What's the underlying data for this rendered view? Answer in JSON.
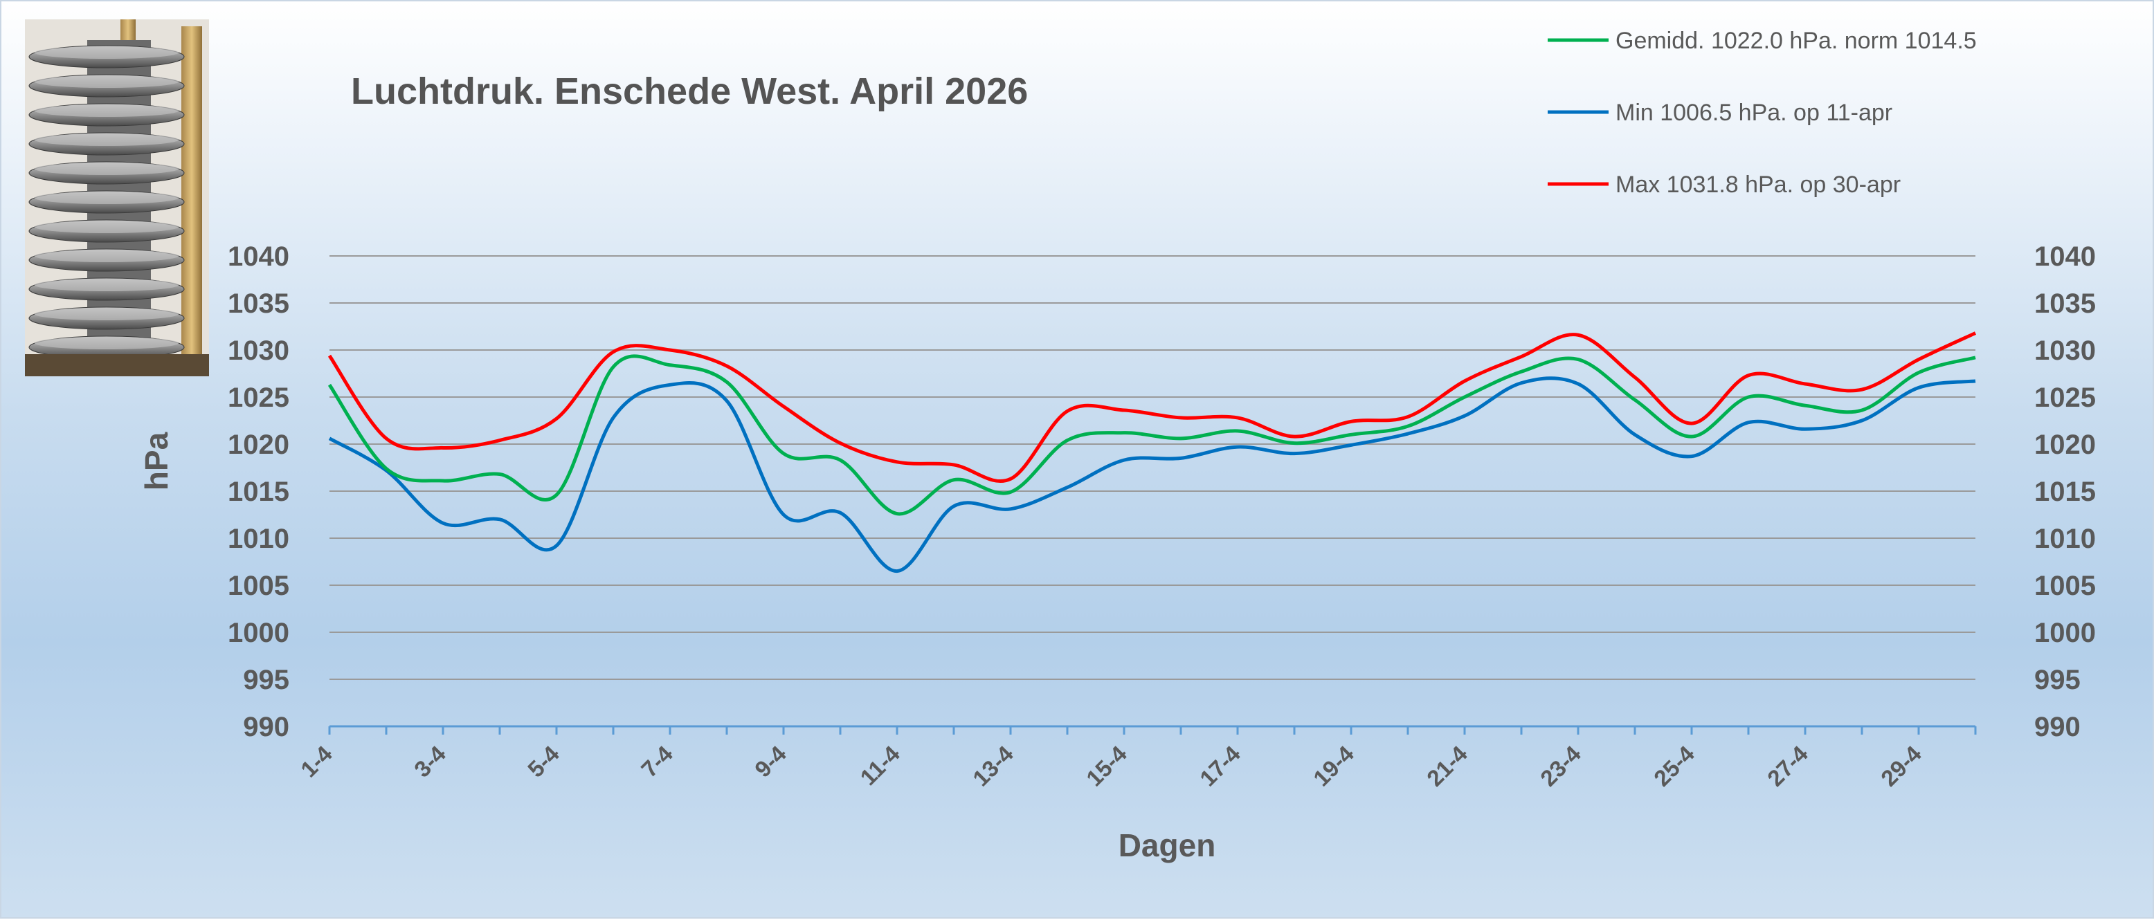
{
  "chart_data": {
    "type": "line",
    "title": "Luchtdruk. Enschede West. April 2026",
    "xlabel": "Dagen",
    "ylabel": "hPa",
    "ylim": [
      990,
      1040
    ],
    "ytick_step": 5,
    "grid": true,
    "legend_position": "top-right",
    "x": [
      "1-4",
      "2-4",
      "3-4",
      "4-4",
      "5-4",
      "6-4",
      "7-4",
      "8-4",
      "9-4",
      "10-4",
      "11-4",
      "12-4",
      "13-4",
      "14-4",
      "15-4",
      "16-4",
      "17-4",
      "18-4",
      "19-4",
      "20-4",
      "21-4",
      "22-4",
      "23-4",
      "24-4",
      "25-4",
      "26-4",
      "27-4",
      "28-4",
      "29-4",
      "30-4"
    ],
    "x_tick_labels": [
      "1-4",
      "3-4",
      "5-4",
      "7-4",
      "9-4",
      "11-4",
      "13-4",
      "15-4",
      "17-4",
      "19-4",
      "21-4",
      "23-4",
      "25-4",
      "27-4",
      "29-4"
    ],
    "series": [
      {
        "name": "Gemidd. 1022.0 hPa.  norm 1014.5",
        "color": "#00b050",
        "values": [
          1026.3,
          1017.4,
          1016.1,
          1016.8,
          1014.6,
          1028.2,
          1028.4,
          1026.6,
          1019.0,
          1018.3,
          1012.6,
          1016.2,
          1014.9,
          1020.4,
          1021.2,
          1020.6,
          1021.4,
          1020.1,
          1021.0,
          1021.9,
          1025.0,
          1027.7,
          1029.0,
          1024.7,
          1020.8,
          1025.0,
          1024.1,
          1023.6,
          1027.6,
          1029.2
        ]
      },
      {
        "name": "Min 1006.5 hPa.  op 11-apr",
        "color": "#0070c0",
        "values": [
          1020.6,
          1017.2,
          1011.6,
          1012.0,
          1009.2,
          1022.8,
          1026.3,
          1024.6,
          1012.5,
          1012.7,
          1006.5,
          1013.4,
          1013.1,
          1015.4,
          1018.3,
          1018.5,
          1019.7,
          1019.0,
          1019.9,
          1021.1,
          1023.0,
          1026.5,
          1026.4,
          1021.0,
          1018.7,
          1022.3,
          1021.6,
          1022.5,
          1026.0,
          1026.7
        ]
      },
      {
        "name": "Max 1031.8 hPa.  op 30-apr",
        "color": "#ff0000",
        "values": [
          1029.4,
          1020.6,
          1019.6,
          1020.4,
          1022.7,
          1029.8,
          1030.0,
          1028.3,
          1024.0,
          1020.1,
          1018.1,
          1017.8,
          1016.3,
          1023.5,
          1023.6,
          1022.8,
          1022.8,
          1020.8,
          1022.4,
          1022.9,
          1026.7,
          1029.3,
          1031.6,
          1027.1,
          1022.2,
          1027.3,
          1026.4,
          1025.8,
          1029.0,
          1031.8
        ]
      }
    ]
  }
}
